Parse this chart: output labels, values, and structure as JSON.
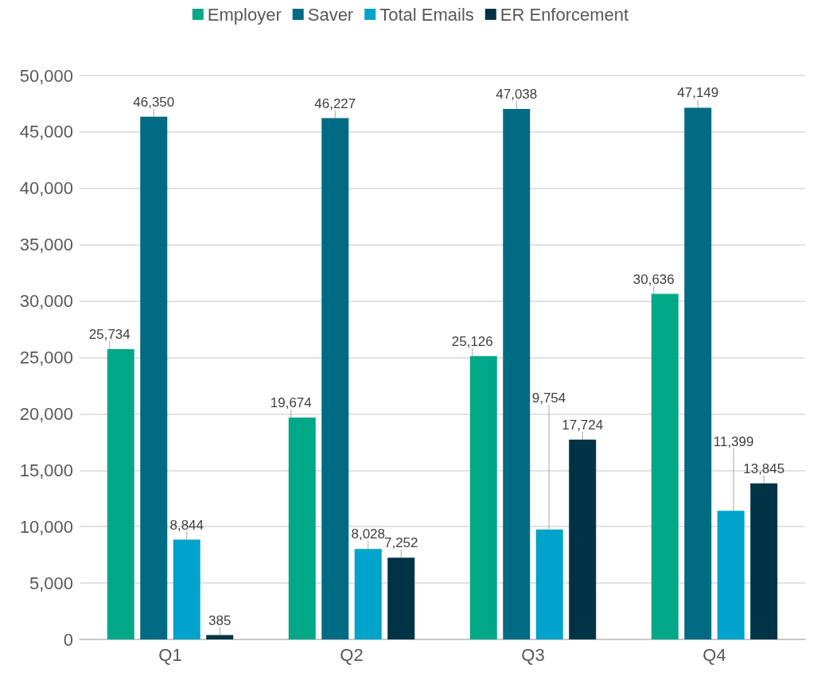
{
  "chart_data": {
    "type": "bar",
    "categories": [
      "Q1",
      "Q2",
      "Q3",
      "Q4"
    ],
    "series": [
      {
        "name": "Employer",
        "color": "#00a887",
        "values": [
          25734,
          19674,
          25126,
          30636
        ],
        "value_labels": [
          "25,734",
          "19,674",
          "25,126",
          "30,636"
        ]
      },
      {
        "name": "Saver",
        "color": "#006b82",
        "values": [
          46350,
          46227,
          47038,
          47149
        ],
        "value_labels": [
          "46,350",
          "46,227",
          "47,038",
          "47,149"
        ]
      },
      {
        "name": "Total Emails",
        "color": "#00a3c9",
        "values": [
          8844,
          8028,
          9754,
          11399
        ],
        "value_labels": [
          "8,844",
          "8,028",
          "9,754",
          "11,399"
        ]
      },
      {
        "name": "ER Enforcement",
        "color": "#003345",
        "values": [
          385,
          7252,
          17724,
          13845
        ],
        "value_labels": [
          "385",
          "7,252",
          "17,724",
          "13,845"
        ]
      }
    ],
    "ylim": [
      0,
      50000
    ],
    "yticks": [
      0,
      {
        "value": 5000,
        "label": "5,000"
      },
      {
        "value": 10000,
        "label": "10,000"
      },
      {
        "value": 15000,
        "label": "15,000"
      },
      {
        "value": 20000,
        "label": "20,000"
      },
      {
        "value": 25000,
        "label": "25,000"
      },
      {
        "value": 30000,
        "label": "30,000"
      },
      {
        "value": 35000,
        "label": "35,000"
      },
      {
        "value": 40000,
        "label": "40,000"
      },
      {
        "value": 45000,
        "label": "45,000"
      },
      {
        "value": 50000,
        "label": "50,000"
      }
    ],
    "grid": "y",
    "legend": "top"
  }
}
